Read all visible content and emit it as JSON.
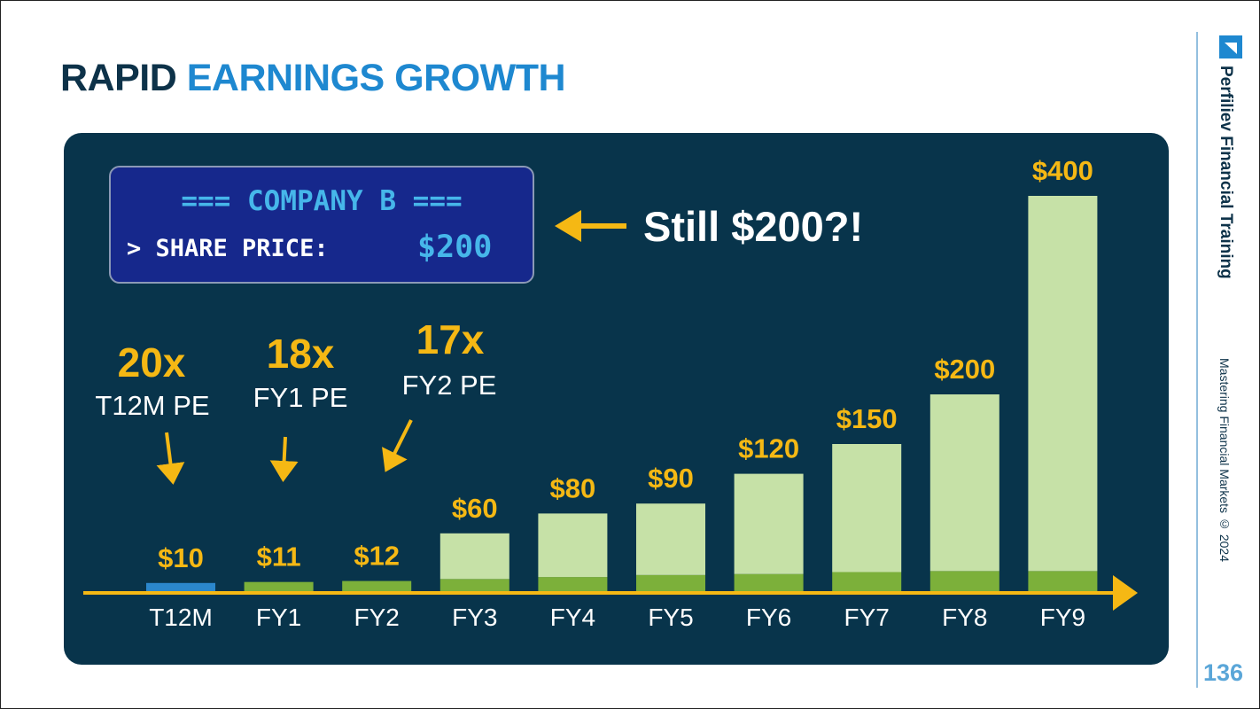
{
  "slide": {
    "title_part1": "RAPID",
    "title_part2": "EARNINGS GROWTH",
    "brand": "Perfiliev Financial Training",
    "tagline": "Mastering Financial Markets © 2024",
    "page_number": "136"
  },
  "terminal": {
    "header": "=== COMPANY B ===",
    "prompt": "> SHARE PRICE:",
    "price": "$200"
  },
  "callout": "Still $200?!",
  "pe_annotations": [
    {
      "multiple": "20x",
      "label": "T12M PE",
      "target": "T12M"
    },
    {
      "multiple": "18x",
      "label": "FY1 PE",
      "target": "FY1"
    },
    {
      "multiple": "17x",
      "label": "FY2 PE",
      "target": "FY2"
    }
  ],
  "colors": {
    "panel": "#08344b",
    "t12m_bar": "#2b87cc",
    "base_bar": "#7cb03a",
    "growth_bar": "#c6e1a7",
    "accent": "#f5b814",
    "terminal_bg": "#16288c",
    "terminal_text": "#46b6ea"
  },
  "chart_data": {
    "type": "bar",
    "stacked": true,
    "categories": [
      "T12M",
      "FY1",
      "FY2",
      "FY3",
      "FY4",
      "FY5",
      "FY6",
      "FY7",
      "FY8",
      "FY9"
    ],
    "series": [
      {
        "values": [
          10,
          11,
          12,
          14,
          16,
          18,
          19,
          21,
          22,
          22
        ]
      },
      {
        "values": [
          0,
          0,
          0,
          46,
          64,
          72,
          101,
          129,
          178,
          378
        ]
      }
    ],
    "data_labels": [
      "$10",
      "$11",
      "$12",
      "$60",
      "$80",
      "$90",
      "$120",
      "$150",
      "$200",
      "$400"
    ],
    "totals": [
      10,
      11,
      12,
      60,
      80,
      90,
      120,
      150,
      200,
      400
    ],
    "highlight": {
      "category": "T12M"
    },
    "title": "",
    "xlabel": "",
    "ylabel": "",
    "ylim": [
      0,
      400
    ],
    "grid": false,
    "legend": "none"
  }
}
